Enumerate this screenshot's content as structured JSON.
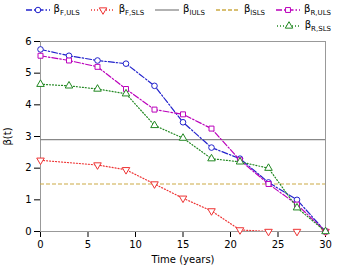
{
  "chart_data": {
    "type": "line",
    "xlabel": "Time (years)",
    "ylabel": "β(t)",
    "xlim": [
      0,
      30
    ],
    "ylim": [
      0,
      6
    ],
    "xticks": [
      0,
      5,
      10,
      15,
      20,
      25,
      30
    ],
    "yticks": [
      0,
      1,
      2,
      3,
      4,
      5,
      6
    ],
    "grid": false,
    "legend": "upper right",
    "series": [
      {
        "name": "βF,ULS",
        "type": "line",
        "color": "#2222cc",
        "line_style": "dashdot",
        "marker": "circle",
        "x": [
          0,
          3,
          6,
          9,
          12,
          15,
          18,
          21,
          24,
          27,
          30
        ],
        "values": [
          5.75,
          5.55,
          5.4,
          5.3,
          4.6,
          3.45,
          2.65,
          2.3,
          1.55,
          1.0,
          0.0
        ]
      },
      {
        "name": "βF,SLS",
        "type": "line",
        "color": "#ee3333",
        "line_style": "dotted",
        "marker": "triangle-down",
        "x": [
          0,
          6,
          9,
          12,
          15,
          18,
          21,
          24,
          27,
          30
        ],
        "values": [
          2.25,
          2.1,
          1.95,
          1.5,
          1.05,
          0.65,
          0.05,
          0.0,
          0.0,
          0.0
        ]
      },
      {
        "name": "βlULS",
        "type": "hline",
        "color": "#888888",
        "line_style": "solid",
        "values": [
          2.9
        ]
      },
      {
        "name": "βlSLS",
        "type": "hline",
        "color": "#ccaa44",
        "line_style": "dashed",
        "values": [
          1.5
        ]
      },
      {
        "name": "βR,ULS",
        "type": "line",
        "color": "#bb00bb",
        "line_style": "dashdot",
        "marker": "square",
        "x": [
          0,
          3,
          6,
          9,
          12,
          15,
          18,
          21,
          24,
          27,
          30
        ],
        "values": [
          5.55,
          5.4,
          5.2,
          4.5,
          3.85,
          3.7,
          3.25,
          2.25,
          1.5,
          0.85,
          0.0
        ]
      },
      {
        "name": "βR,SLS",
        "type": "line",
        "color": "#228822",
        "line_style": "dotted",
        "marker": "triangle-up",
        "x": [
          0,
          3,
          6,
          9,
          12,
          15,
          18,
          21,
          24,
          27,
          30
        ],
        "values": [
          4.65,
          4.6,
          4.5,
          4.35,
          3.35,
          2.95,
          2.3,
          2.2,
          2.0,
          0.75,
          0.0
        ]
      }
    ]
  }
}
